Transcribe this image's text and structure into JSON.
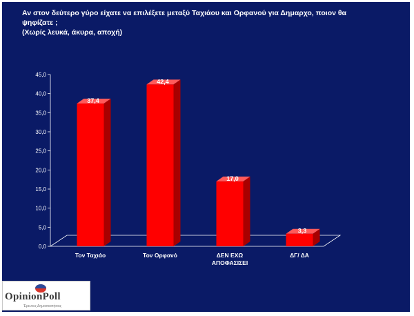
{
  "title_lines": [
    "Αν στον δεύτερο γύρο είχατε να επιλέξετε μεταξύ Ταχιάου και Ορφανού για Δημαρχο, ποιον θα",
    "ψηφίζατε ;",
    "(Χωρίς λευκά, άκυρα, αποχή)"
  ],
  "logo": {
    "name": "OpinionPoll",
    "subtitle": "Έρευνες Δημοσκοπήσεις"
  },
  "colors": {
    "background": "#0a1a66",
    "bar": "#ff0000",
    "text": "#ffffff"
  },
  "chart_data": {
    "type": "bar",
    "categories": [
      [
        "Τον Ταχιάο"
      ],
      [
        "Τον Ορφανό"
      ],
      [
        "ΔΕΝ ΕΧΩ",
        "ΑΠΟΦΑΣΙΣΕΙ"
      ],
      [
        "ΔΓ/ ΔΑ"
      ]
    ],
    "values": [
      37.4,
      42.4,
      17.0,
      3.3
    ],
    "value_labels": [
      "37,4",
      "42,4",
      "17,0",
      "3,3"
    ],
    "y_ticks": [
      "0,0",
      "5,0",
      "10,0",
      "15,0",
      "20,0",
      "25,0",
      "30,0",
      "35,0",
      "40,0",
      "45,0"
    ],
    "ylim": [
      0,
      45
    ],
    "grid": false,
    "legend": "none"
  }
}
